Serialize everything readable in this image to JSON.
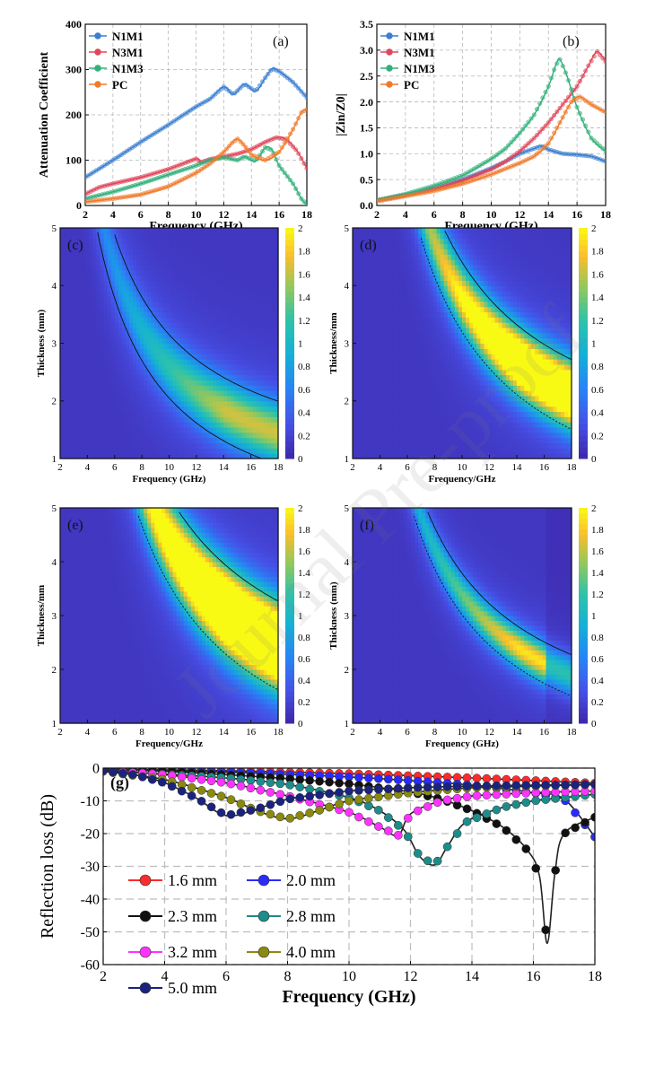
{
  "watermark": "Journal Pre-proof",
  "chart_data": [
    {
      "id": "a",
      "type": "line",
      "panel_label": "(a)",
      "xlabel": "Frequency (GHz)",
      "ylabel": "Attenuation Coefficient",
      "xlim": [
        2,
        18
      ],
      "ylim": [
        0,
        400
      ],
      "xticks": [
        2,
        4,
        6,
        8,
        10,
        12,
        14,
        16,
        18
      ],
      "yticks": [
        0,
        100,
        200,
        300,
        400
      ],
      "legend_position": "top-left",
      "series": [
        {
          "name": "N1M1",
          "color": "#3a7fd0",
          "points": [
            [
              2,
              62
            ],
            [
              4,
              100
            ],
            [
              6,
              140
            ],
            [
              8,
              178
            ],
            [
              10,
              218
            ],
            [
              11,
              235
            ],
            [
              12,
              262
            ],
            [
              12.7,
              245
            ],
            [
              13.5,
              268
            ],
            [
              14.3,
              252
            ],
            [
              15,
              282
            ],
            [
              15.5,
              302
            ],
            [
              16,
              296
            ],
            [
              17,
              272
            ],
            [
              18,
              238
            ]
          ]
        },
        {
          "name": "N3M1",
          "color": "#e0465a",
          "points": [
            [
              2,
              25
            ],
            [
              3,
              40
            ],
            [
              4,
              48
            ],
            [
              6,
              62
            ],
            [
              8,
              80
            ],
            [
              10,
              103
            ],
            [
              10.3,
              95
            ],
            [
              11,
              102
            ],
            [
              12,
              108
            ],
            [
              13,
              114
            ],
            [
              14,
              124
            ],
            [
              15,
              140
            ],
            [
              15.8,
              150
            ],
            [
              16.5,
              146
            ],
            [
              17.3,
              120
            ],
            [
              18,
              82
            ]
          ]
        },
        {
          "name": "N1M3",
          "color": "#32b07a",
          "points": [
            [
              2,
              15
            ],
            [
              4,
              30
            ],
            [
              6,
              48
            ],
            [
              8,
              68
            ],
            [
              10,
              88
            ],
            [
              11,
              100
            ],
            [
              12,
              106
            ],
            [
              13,
              100
            ],
            [
              13.5,
              108
            ],
            [
              14.3,
              98
            ],
            [
              15,
              128
            ],
            [
              15.5,
              122
            ],
            [
              16,
              88
            ],
            [
              17,
              48
            ],
            [
              17.6,
              15
            ],
            [
              18,
              2
            ]
          ]
        },
        {
          "name": "PC",
          "color": "#f07a2a",
          "points": [
            [
              2,
              8
            ],
            [
              4,
              15
            ],
            [
              6,
              24
            ],
            [
              8,
              42
            ],
            [
              10,
              72
            ],
            [
              11,
              92
            ],
            [
              12,
              118
            ],
            [
              12.6,
              138
            ],
            [
              13,
              147
            ],
            [
              13.5,
              132
            ],
            [
              14,
              112
            ],
            [
              15,
              100
            ],
            [
              16,
              118
            ],
            [
              17,
              168
            ],
            [
              17.6,
              205
            ],
            [
              18,
              212
            ]
          ]
        }
      ]
    },
    {
      "id": "b",
      "type": "line",
      "panel_label": "(b)",
      "xlabel": "Frequency (GHz)",
      "ylabel": "|Zin/Z0|",
      "xlim": [
        2,
        18
      ],
      "ylim": [
        0.0,
        3.5
      ],
      "xticks": [
        2,
        4,
        6,
        8,
        10,
        12,
        14,
        16,
        18
      ],
      "yticks": [
        "0.0",
        "0.5",
        "1.0",
        "1.5",
        "2.0",
        "2.5",
        "3.0",
        "3.5"
      ],
      "legend_position": "top-left",
      "series": [
        {
          "name": "N1M1",
          "color": "#3a7fd0",
          "points": [
            [
              2,
              0.1
            ],
            [
              4,
              0.2
            ],
            [
              6,
              0.32
            ],
            [
              8,
              0.5
            ],
            [
              10,
              0.72
            ],
            [
              11,
              0.85
            ],
            [
              12,
              1.0
            ],
            [
              13,
              1.1
            ],
            [
              13.5,
              1.15
            ],
            [
              14,
              1.08
            ],
            [
              15,
              1.0
            ],
            [
              16,
              0.98
            ],
            [
              17,
              0.95
            ],
            [
              18,
              0.85
            ]
          ]
        },
        {
          "name": "N3M1",
          "color": "#e0465a",
          "points": [
            [
              2,
              0.1
            ],
            [
              4,
              0.2
            ],
            [
              6,
              0.32
            ],
            [
              8,
              0.48
            ],
            [
              10,
              0.7
            ],
            [
              11,
              0.85
            ],
            [
              12,
              1.05
            ],
            [
              13,
              1.3
            ],
            [
              14,
              1.6
            ],
            [
              15,
              1.95
            ],
            [
              16,
              2.3
            ],
            [
              16.8,
              2.7
            ],
            [
              17.4,
              2.97
            ],
            [
              18,
              2.78
            ]
          ]
        },
        {
          "name": "N1M3",
          "color": "#32b07a",
          "points": [
            [
              2,
              0.1
            ],
            [
              4,
              0.22
            ],
            [
              6,
              0.38
            ],
            [
              8,
              0.58
            ],
            [
              10,
              0.9
            ],
            [
              11,
              1.1
            ],
            [
              12,
              1.4
            ],
            [
              13,
              1.75
            ],
            [
              14,
              2.3
            ],
            [
              14.5,
              2.7
            ],
            [
              14.8,
              2.82
            ],
            [
              15.3,
              2.5
            ],
            [
              16,
              1.9
            ],
            [
              17,
              1.3
            ],
            [
              18,
              1.05
            ]
          ]
        },
        {
          "name": "PC",
          "color": "#f07a2a",
          "points": [
            [
              2,
              0.08
            ],
            [
              4,
              0.18
            ],
            [
              6,
              0.28
            ],
            [
              8,
              0.42
            ],
            [
              10,
              0.6
            ],
            [
              12,
              0.82
            ],
            [
              13,
              0.95
            ],
            [
              14,
              1.2
            ],
            [
              15,
              1.7
            ],
            [
              15.6,
              2.0
            ],
            [
              16.2,
              2.1
            ],
            [
              17,
              1.95
            ],
            [
              18,
              1.8
            ]
          ]
        }
      ]
    },
    {
      "id": "c",
      "type": "heatmap",
      "panel_label": "(c)",
      "xlabel": "Frequency (GHz)",
      "ylabel": "Thickness (mm)",
      "xlim": [
        2,
        18
      ],
      "ylim": [
        1,
        5
      ],
      "xticks": [
        2,
        4,
        6,
        8,
        10,
        12,
        14,
        16,
        18
      ],
      "yticks": [
        1,
        2,
        3,
        4,
        5
      ],
      "colorbar": {
        "range": [
          0,
          2
        ],
        "ticks": [
          "0",
          "0.2",
          "0.4",
          "0.6",
          "0.8",
          "1",
          "1.2",
          "1.4",
          "1.6",
          "1.8",
          "2"
        ],
        "colormap": "parula"
      },
      "band": {
        "k": 26,
        "width": 0.5,
        "peak": 1.0,
        "max_x": 18
      }
    },
    {
      "id": "d",
      "type": "heatmap",
      "panel_label": "(d)",
      "xlabel": "Frequency/GHz",
      "ylabel": "Thickness/mm",
      "xlim": [
        2,
        18
      ],
      "ylim": [
        1,
        5
      ],
      "xticks": [
        2,
        4,
        6,
        8,
        10,
        12,
        14,
        16,
        18
      ],
      "yticks": [
        1,
        2,
        3,
        4,
        5
      ],
      "colorbar": {
        "range": [
          0,
          2
        ],
        "ticks": [
          "0",
          "0.2",
          "0.4",
          "0.6",
          "0.8",
          "1",
          "1.2",
          "1.4",
          "1.6",
          "1.8",
          "2"
        ],
        "colormap": "parula"
      },
      "band": {
        "k": 38,
        "width": 0.55,
        "peak": 2.0,
        "max_x": 18
      }
    },
    {
      "id": "e",
      "type": "heatmap",
      "panel_label": "(e)",
      "xlabel": "Frequency/GHz",
      "ylabel": "Thickness/mm",
      "xlim": [
        2,
        18
      ],
      "ylim": [
        1,
        5
      ],
      "xticks": [
        2,
        4,
        6,
        8,
        10,
        12,
        14,
        16,
        18
      ],
      "yticks": [
        1,
        2,
        3,
        4,
        5
      ],
      "colorbar": {
        "range": [
          0,
          2
        ],
        "ticks": [
          "0",
          "0.2",
          "0.4",
          "0.6",
          "0.8",
          "1",
          "1.2",
          "1.4",
          "1.6",
          "1.8",
          "2"
        ],
        "colormap": "parula"
      },
      "band": {
        "k": 44,
        "width": 0.75,
        "peak": 2.4,
        "max_x": 18
      }
    },
    {
      "id": "f",
      "type": "heatmap",
      "panel_label": "(f)",
      "xlabel": "Frequency (GHz)",
      "ylabel": "Thickness (mm)",
      "xlim": [
        2,
        18
      ],
      "ylim": [
        1,
        5
      ],
      "xticks": [
        2,
        4,
        6,
        8,
        10,
        12,
        14,
        16,
        18
      ],
      "yticks": [
        1,
        2,
        3,
        4,
        5
      ],
      "colorbar": {
        "range": [
          0,
          2
        ],
        "ticks": [
          "0",
          "0.2",
          "0.4",
          "0.6",
          "0.8",
          "1",
          "1.2",
          "1.4",
          "1.6",
          "1.8",
          "2"
        ],
        "colormap": "parula"
      },
      "band": {
        "k": 34,
        "width": 0.35,
        "peak": 1.2,
        "max_x": 16
      }
    },
    {
      "id": "g",
      "type": "line",
      "panel_label": "(g)",
      "xlabel": "Frequency (GHz)",
      "ylabel": "Reflection loss (dB)",
      "xlim": [
        2,
        18
      ],
      "ylim": [
        -60,
        0
      ],
      "xticks": [
        2,
        4,
        6,
        8,
        10,
        12,
        14,
        16,
        18
      ],
      "yticks": [
        0,
        -10,
        -20,
        -30,
        -40,
        -50,
        -60
      ],
      "legend_position": "bottom-left",
      "series": [
        {
          "name": "1.6 mm",
          "color": "#ff2a2a",
          "points": [
            [
              2,
              -0.3
            ],
            [
              6,
              -0.8
            ],
            [
              10,
              -1.7
            ],
            [
              14,
              -3.0
            ],
            [
              18,
              -4.6
            ]
          ]
        },
        {
          "name": "2.0 mm",
          "color": "#2a2aff",
          "points": [
            [
              2,
              -0.4
            ],
            [
              6,
              -1.2
            ],
            [
              10,
              -2.7
            ],
            [
              12,
              -3.8
            ],
            [
              14,
              -5.2
            ],
            [
              16,
              -7.5
            ],
            [
              17,
              -9.5
            ],
            [
              18,
              -21
            ]
          ]
        },
        {
          "name": "2.3 mm",
          "color": "#111111",
          "points": [
            [
              2,
              -0.5
            ],
            [
              4,
              -1
            ],
            [
              6,
              -2
            ],
            [
              8,
              -3.2
            ],
            [
              10,
              -4.8
            ],
            [
              12,
              -7.3
            ],
            [
              13,
              -9.5
            ],
            [
              14,
              -13
            ],
            [
              15,
              -18
            ],
            [
              15.8,
              -25
            ],
            [
              16.2,
              -33
            ],
            [
              16.45,
              -53.5
            ],
            [
              16.7,
              -32
            ],
            [
              17,
              -20
            ],
            [
              18,
              -15
            ]
          ]
        },
        {
          "name": "2.8 mm",
          "color": "#1e8c8a",
          "points": [
            [
              2,
              -0.7
            ],
            [
              6,
              -3
            ],
            [
              8,
              -5
            ],
            [
              10,
              -9
            ],
            [
              11,
              -13
            ],
            [
              11.8,
              -19
            ],
            [
              12.3,
              -27
            ],
            [
              12.8,
              -29.5
            ],
            [
              13.2,
              -24
            ],
            [
              13.8,
              -16.5
            ],
            [
              15,
              -12
            ],
            [
              16,
              -10
            ],
            [
              17,
              -9
            ],
            [
              18,
              -8
            ]
          ]
        },
        {
          "name": "3.2 mm",
          "color": "#ff33ff",
          "points": [
            [
              2,
              -0.8
            ],
            [
              4,
              -2
            ],
            [
              6,
              -4.5
            ],
            [
              8,
              -8.5
            ],
            [
              10,
              -13.5
            ],
            [
              11,
              -18
            ],
            [
              11.6,
              -20.5
            ],
            [
              12,
              -14
            ],
            [
              13,
              -10
            ],
            [
              14,
              -8.5
            ],
            [
              16,
              -7.5
            ],
            [
              18,
              -7
            ]
          ]
        },
        {
          "name": "4.0 mm",
          "color": "#8a8a10",
          "points": [
            [
              2,
              -1
            ],
            [
              4,
              -3.5
            ],
            [
              6,
              -9
            ],
            [
              7,
              -13
            ],
            [
              8,
              -15.5
            ],
            [
              9,
              -13
            ],
            [
              10,
              -10
            ],
            [
              12,
              -7.5
            ],
            [
              14,
              -6
            ],
            [
              16,
              -5.5
            ],
            [
              18,
              -5
            ]
          ]
        },
        {
          "name": "5.0 mm",
          "color": "#1a237e",
          "points": [
            [
              2,
              -0.8
            ],
            [
              3,
              -2
            ],
            [
              4,
              -4.5
            ],
            [
              5,
              -9
            ],
            [
              6,
              -14.5
            ],
            [
              7,
              -12.5
            ],
            [
              8,
              -9.5
            ],
            [
              10,
              -7
            ],
            [
              12,
              -6
            ],
            [
              14,
              -5.5
            ],
            [
              16,
              -5.2
            ],
            [
              18,
              -5
            ]
          ]
        }
      ]
    }
  ]
}
